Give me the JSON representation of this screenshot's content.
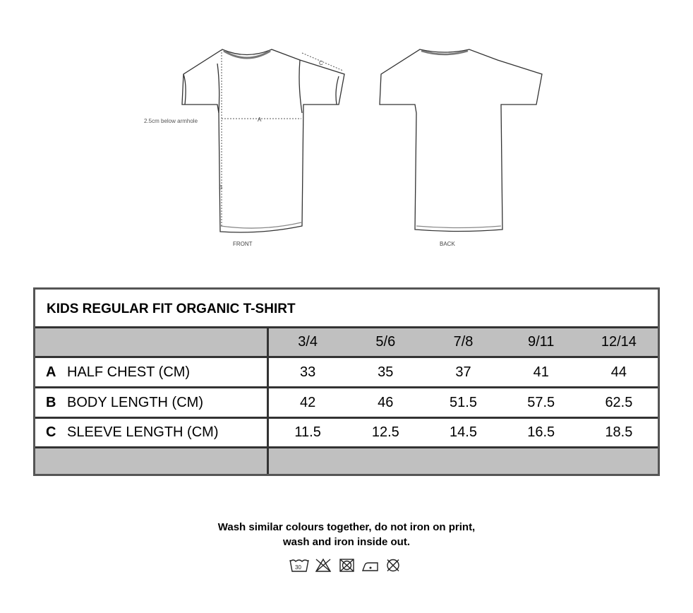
{
  "diagram": {
    "label_front": "FRONT",
    "label_back": "BACK",
    "note": "2.5cm below armhole",
    "mark_a": "A",
    "mark_b": "B",
    "mark_c": "C"
  },
  "table": {
    "title": "KIDS REGULAR FIT ORGANIC T-SHIRT",
    "sizes": [
      "3/4",
      "5/6",
      "7/8",
      "9/11",
      "12/14"
    ],
    "rows": [
      {
        "letter": "A",
        "label": "HALF CHEST (CM)",
        "values": [
          "33",
          "35",
          "37",
          "41",
          "44"
        ]
      },
      {
        "letter": "B",
        "label": "BODY LENGTH (CM)",
        "values": [
          "42",
          "46",
          "51.5",
          "57.5",
          "62.5"
        ]
      },
      {
        "letter": "C",
        "label": "SLEEVE LENGTH (CM)",
        "values": [
          "11.5",
          "12.5",
          "14.5",
          "16.5",
          "18.5"
        ]
      }
    ],
    "header_color": "#c0c0c0"
  },
  "care": {
    "line1": "Wash similar colours together, do not iron on print,",
    "line2": "wash and iron inside out.",
    "wash_temp": "30",
    "icons": [
      "wash-30-icon",
      "do-not-bleach-icon",
      "do-not-tumble-dry-icon",
      "iron-low-icon",
      "do-not-dry-clean-icon"
    ]
  }
}
